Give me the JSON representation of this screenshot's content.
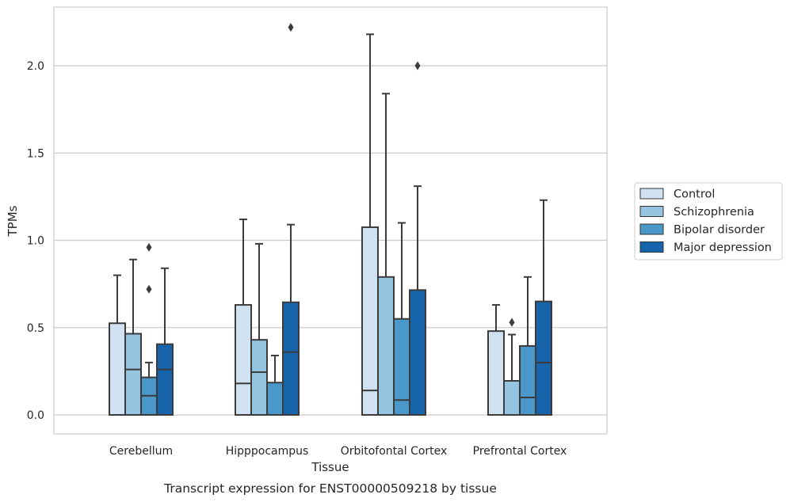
{
  "chart_data": {
    "type": "boxplot",
    "xlabel": "Tissue",
    "ylabel": "TPMs",
    "caption": "Transcript expression for ENST00000509218 by tissue",
    "ylim": [
      -0.11,
      2.34
    ],
    "yticks": [
      0.0,
      0.5,
      1.0,
      1.5,
      2.0
    ],
    "ytick_labels": [
      "0.0",
      "0.5",
      "1.0",
      "1.5",
      "2.0"
    ],
    "grid": "horizontal",
    "legend_position": "right",
    "categories": [
      "Cerebellum",
      "Hipppocampus",
      "Orbitofontal Cortex",
      "Prefrontal Cortex"
    ],
    "series": [
      {
        "name": "Control",
        "color": "#d0e1f2",
        "boxes": [
          {
            "whisker_low": 0,
            "q1": 0,
            "median": 0,
            "q3": 0.525,
            "whisker_high": 0.8,
            "outliers": []
          },
          {
            "whisker_low": 0,
            "q1": 0,
            "median": 0.18,
            "q3": 0.63,
            "whisker_high": 1.12,
            "outliers": []
          },
          {
            "whisker_low": 0,
            "q1": 0,
            "median": 0.14,
            "q3": 1.075,
            "whisker_high": 2.18,
            "outliers": []
          },
          {
            "whisker_low": 0,
            "q1": 0,
            "median": 0,
            "q3": 0.48,
            "whisker_high": 0.63,
            "outliers": []
          }
        ]
      },
      {
        "name": "Schizophrenia",
        "color": "#94c4df",
        "boxes": [
          {
            "whisker_low": 0,
            "q1": 0,
            "median": 0.26,
            "q3": 0.465,
            "whisker_high": 0.89,
            "outliers": []
          },
          {
            "whisker_low": 0,
            "q1": 0,
            "median": 0.245,
            "q3": 0.43,
            "whisker_high": 0.98,
            "outliers": []
          },
          {
            "whisker_low": 0,
            "q1": 0,
            "median": 0,
            "q3": 0.79,
            "whisker_high": 1.84,
            "outliers": []
          },
          {
            "whisker_low": 0,
            "q1": 0,
            "median": 0,
            "q3": 0.195,
            "whisker_high": 0.46,
            "outliers": [
              0.53
            ]
          }
        ]
      },
      {
        "name": "Bipolar disorder",
        "color": "#4a98c9",
        "boxes": [
          {
            "whisker_low": 0,
            "q1": 0,
            "median": 0.11,
            "q3": 0.215,
            "whisker_high": 0.3,
            "outliers": [
              0.72,
              0.96
            ]
          },
          {
            "whisker_low": 0,
            "q1": 0,
            "median": 0,
            "q3": 0.185,
            "whisker_high": 0.34,
            "outliers": []
          },
          {
            "whisker_low": 0,
            "q1": 0,
            "median": 0.085,
            "q3": 0.55,
            "whisker_high": 1.1,
            "outliers": []
          },
          {
            "whisker_low": 0,
            "q1": 0,
            "median": 0.1,
            "q3": 0.395,
            "whisker_high": 0.79,
            "outliers": []
          }
        ]
      },
      {
        "name": "Major depression",
        "color": "#1764ab",
        "boxes": [
          {
            "whisker_low": 0,
            "q1": 0,
            "median": 0.26,
            "q3": 0.405,
            "whisker_high": 0.84,
            "outliers": []
          },
          {
            "whisker_low": 0,
            "q1": 0,
            "median": 0.36,
            "q3": 0.645,
            "whisker_high": 1.09,
            "outliers": [
              2.22
            ]
          },
          {
            "whisker_low": 0,
            "q1": 0,
            "median": 0,
            "q3": 0.715,
            "whisker_high": 1.31,
            "outliers": [
              2.0
            ]
          },
          {
            "whisker_low": 0,
            "q1": 0,
            "median": 0.3,
            "q3": 0.65,
            "whisker_high": 1.23,
            "outliers": []
          }
        ]
      }
    ]
  }
}
